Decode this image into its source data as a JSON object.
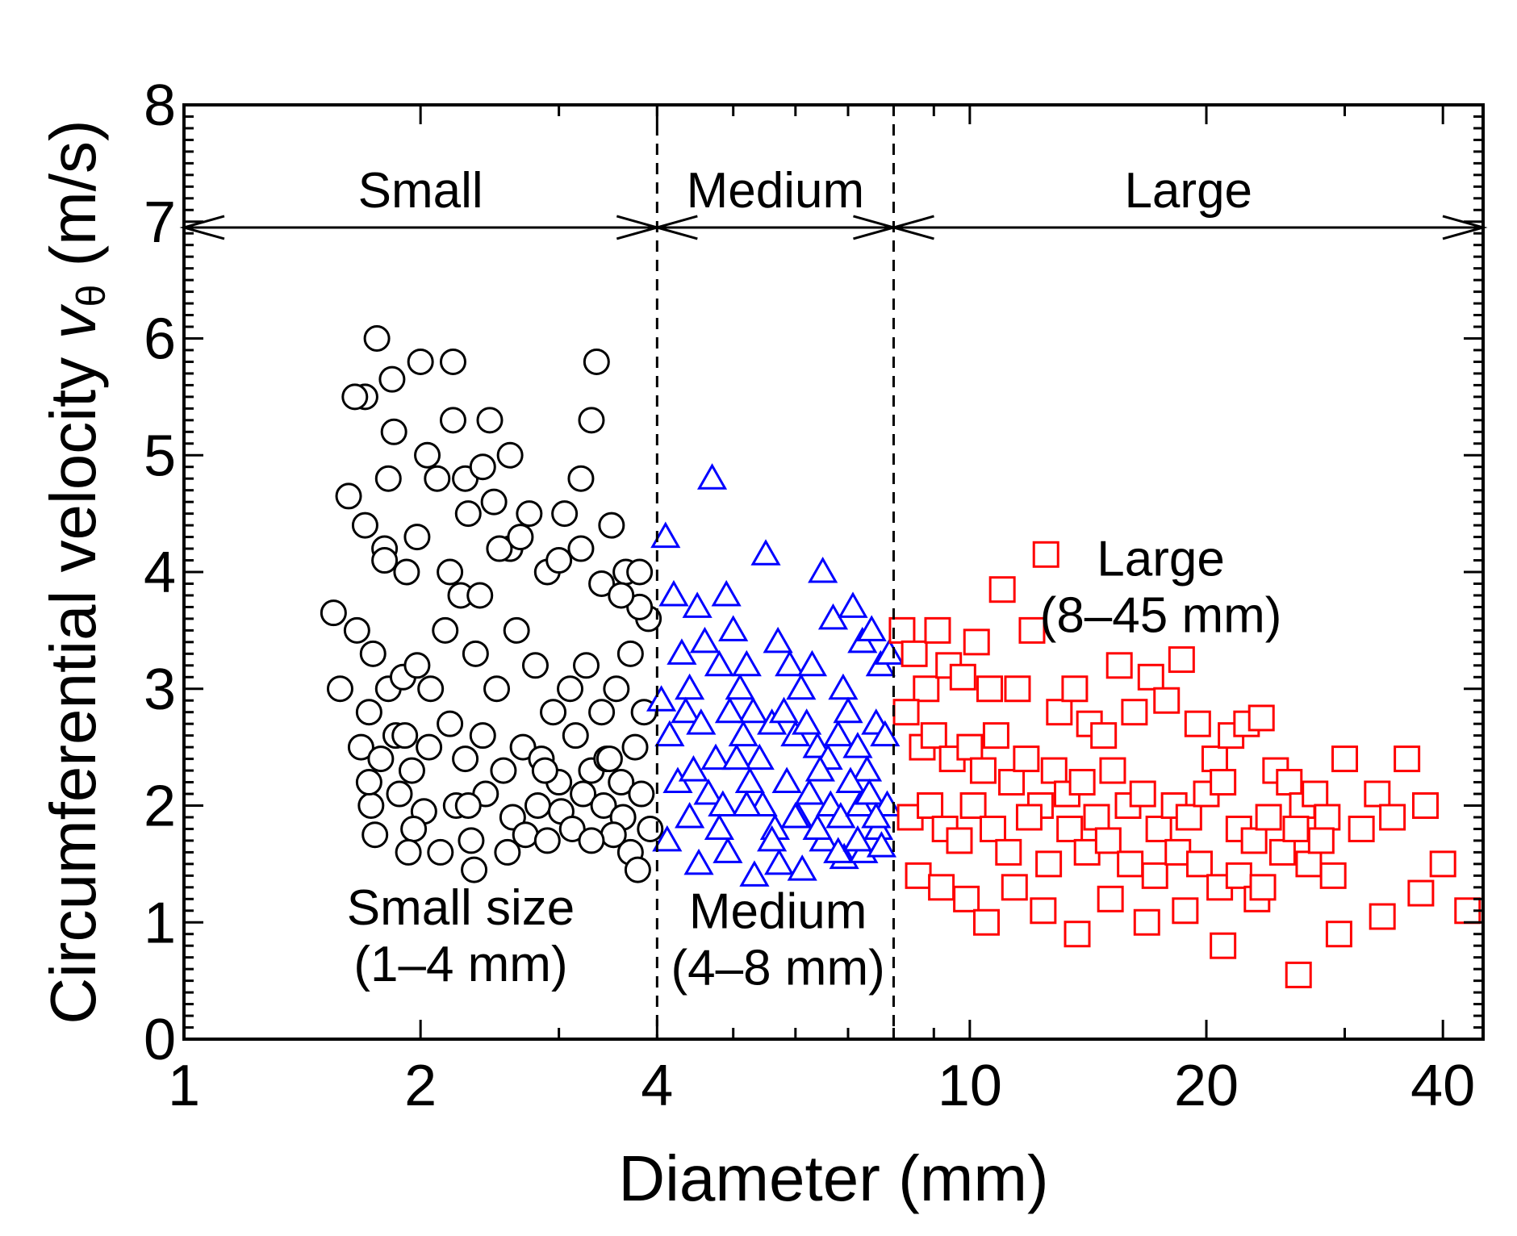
{
  "chart_data": {
    "type": "scatter",
    "title": "",
    "xlabel": "Diameter (mm)",
    "ylabel": "Circumferential velocity",
    "ylabel_symbol": "v",
    "ylabel_subscript": "θ",
    "ylabel_unit": "(m/s)",
    "xscale": "log",
    "xlim": [
      1,
      45
    ],
    "ylim": [
      0,
      8
    ],
    "xticks": [
      1,
      2,
      4,
      10,
      20,
      40
    ],
    "xtick_labels": [
      "1",
      "2",
      "4",
      "10",
      "20",
      "40"
    ],
    "yticks": [
      0,
      1,
      2,
      3,
      4,
      5,
      6,
      7,
      8
    ],
    "ytick_labels": [
      "0",
      "1",
      "2",
      "3",
      "4",
      "5",
      "6",
      "7",
      "8"
    ],
    "boundaries": [
      4,
      8
    ],
    "range_arrow_y": 6.95,
    "regions": [
      {
        "name": "Small",
        "from": 1,
        "to": 4
      },
      {
        "name": "Medium",
        "from": 4,
        "to": 8
      },
      {
        "name": "Large",
        "from": 8,
        "to": 45
      }
    ],
    "annotations": [
      {
        "line1": "Small size",
        "line2": "(1–4 mm)",
        "x": 2.25,
        "y": 0.98
      },
      {
        "line1": "Medium",
        "line2": "(4–8 mm)",
        "x": 5.7,
        "y": 0.95
      },
      {
        "line1": "Large",
        "line2": "(8–45 mm)",
        "x": 17.5,
        "y": 3.97
      }
    ],
    "series": [
      {
        "name": "Small size (1–4 mm)",
        "marker": "circle",
        "color": "#000000",
        "x": [
          1.55,
          1.62,
          1.7,
          1.76,
          1.8,
          1.84,
          1.92,
          2.0,
          2.1,
          2.2,
          2.3,
          2.45,
          2.6,
          2.75,
          2.9,
          3.05,
          3.2,
          3.35,
          3.5,
          3.65,
          3.8,
          3.9,
          1.58,
          1.66,
          1.74,
          1.82,
          1.9,
          1.98,
          2.06,
          2.15,
          2.25,
          2.35,
          2.5,
          2.65,
          2.8,
          2.95,
          3.1,
          3.25,
          3.4,
          3.55,
          3.7,
          3.85,
          1.68,
          1.72,
          1.78,
          1.86,
          1.95,
          2.05,
          2.18,
          2.28,
          2.4,
          2.55,
          2.7,
          2.85,
          3.0,
          3.15,
          3.3,
          3.45,
          3.6,
          3.75,
          1.73,
          1.88,
          2.02,
          2.22,
          2.42,
          2.62,
          2.82,
          3.02,
          3.22,
          3.42,
          3.62,
          3.82,
          1.75,
          1.96,
          2.32,
          2.72,
          3.12,
          3.52,
          3.92,
          1.93,
          2.12,
          2.34,
          2.58,
          2.9,
          3.3,
          3.7,
          1.7,
          1.8,
          1.98,
          2.18,
          2.38,
          2.52,
          1.82,
          2.04,
          2.28,
          2.48,
          2.68,
          3.0,
          3.4,
          3.8,
          2.2,
          2.6,
          3.2,
          3.6,
          1.85,
          2.4,
          3.3,
          1.65,
          1.72,
          1.91,
          2.3,
          2.88,
          3.48,
          3.78
        ],
        "y": [
          3.65,
          4.65,
          5.5,
          6.0,
          4.2,
          5.65,
          4.0,
          5.8,
          4.8,
          5.8,
          4.5,
          5.3,
          4.2,
          4.5,
          4.0,
          4.5,
          4.8,
          5.8,
          4.4,
          4.0,
          4.0,
          3.6,
          3.0,
          3.5,
          3.3,
          3.0,
          3.1,
          3.2,
          3.0,
          3.5,
          3.8,
          3.3,
          3.0,
          3.5,
          3.2,
          2.8,
          3.0,
          3.2,
          2.8,
          3.0,
          3.3,
          2.8,
          2.5,
          2.8,
          2.4,
          2.6,
          2.3,
          2.5,
          2.7,
          2.4,
          2.6,
          2.3,
          2.5,
          2.4,
          2.2,
          2.6,
          2.3,
          2.4,
          2.2,
          2.5,
          2.0,
          2.1,
          1.95,
          2.0,
          2.1,
          1.9,
          2.0,
          1.95,
          2.1,
          2.0,
          1.9,
          2.1,
          1.75,
          1.8,
          1.7,
          1.75,
          1.8,
          1.75,
          1.8,
          1.6,
          1.6,
          1.45,
          1.6,
          1.7,
          1.7,
          1.6,
          4.4,
          4.1,
          4.3,
          4.0,
          3.8,
          4.2,
          4.8,
          5.0,
          4.8,
          4.6,
          4.3,
          4.1,
          3.9,
          3.7,
          5.3,
          5.0,
          4.2,
          3.8,
          5.2,
          4.9,
          5.3,
          5.5,
          2.2,
          2.6,
          2.0,
          2.3,
          2.4,
          1.45
        ]
      },
      {
        "name": "Medium (4–8 mm)",
        "marker": "triangle",
        "color": "#0000ff",
        "x": [
          4.1,
          4.2,
          4.3,
          4.4,
          4.5,
          4.6,
          4.7,
          4.8,
          4.9,
          5.0,
          5.1,
          5.2,
          5.3,
          5.5,
          5.7,
          5.9,
          6.1,
          6.3,
          6.5,
          6.7,
          6.9,
          7.1,
          7.3,
          7.5,
          7.7,
          7.9,
          4.05,
          4.15,
          4.35,
          4.55,
          4.75,
          4.95,
          5.15,
          5.4,
          5.6,
          5.8,
          6.0,
          6.2,
          6.4,
          6.6,
          6.8,
          7.0,
          7.2,
          7.4,
          7.6,
          7.8,
          4.25,
          4.45,
          4.65,
          4.85,
          5.05,
          5.25,
          5.45,
          5.65,
          5.85,
          6.05,
          6.25,
          6.45,
          6.65,
          6.85,
          7.05,
          7.25,
          7.45,
          7.65,
          7.85,
          4.12,
          4.52,
          4.92,
          5.32,
          5.72,
          6.12,
          6.52,
          6.92,
          7.32,
          7.72,
          4.4,
          4.8,
          5.2,
          5.6,
          6.0,
          6.4,
          6.8,
          7.2,
          7.6
        ],
        "y": [
          4.3,
          3.8,
          3.3,
          3.0,
          3.7,
          3.4,
          4.8,
          3.2,
          3.8,
          3.5,
          3.0,
          3.2,
          2.8,
          4.15,
          3.4,
          3.2,
          3.0,
          3.2,
          4.0,
          3.6,
          3.0,
          3.7,
          3.4,
          3.5,
          3.2,
          3.3,
          2.9,
          2.6,
          2.8,
          2.7,
          2.4,
          2.8,
          2.6,
          2.4,
          2.7,
          2.8,
          2.6,
          2.7,
          2.5,
          2.4,
          2.6,
          2.8,
          2.5,
          2.3,
          2.7,
          2.6,
          2.2,
          2.3,
          2.1,
          2.0,
          2.4,
          2.2,
          2.0,
          1.8,
          2.2,
          1.9,
          2.1,
          2.3,
          2.0,
          1.9,
          2.2,
          2.0,
          2.1,
          1.8,
          2.0,
          1.7,
          1.5,
          1.6,
          1.4,
          1.5,
          1.45,
          1.7,
          1.55,
          1.6,
          1.65,
          1.9,
          1.8,
          2.0,
          1.7,
          1.9,
          1.8,
          1.6,
          1.7,
          1.9
        ]
      },
      {
        "name": "Large (8–45 mm)",
        "marker": "square",
        "color": "#ff0000",
        "x": [
          8.2,
          8.5,
          8.8,
          9.1,
          9.4,
          9.8,
          10.2,
          10.6,
          11.0,
          11.5,
          12.0,
          12.5,
          13.0,
          13.6,
          14.2,
          14.8,
          15.5,
          16.2,
          17.0,
          17.8,
          18.6,
          19.5,
          20.5,
          21.5,
          22.5,
          23.5,
          24.5,
          25.5,
          26.5,
          27.5,
          28.5,
          30.0,
          31.5,
          33.0,
          34.5,
          36.0,
          38.0,
          40.0,
          43.0,
          8.3,
          8.7,
          9.0,
          9.5,
          10.0,
          10.4,
          10.8,
          11.3,
          11.8,
          12.3,
          12.8,
          13.3,
          13.9,
          14.5,
          15.2,
          15.9,
          16.6,
          17.4,
          18.2,
          19.0,
          20.0,
          21.0,
          22.0,
          23.0,
          24.0,
          25.0,
          26.0,
          27.0,
          28.0,
          29.0,
          8.4,
          8.9,
          9.3,
          9.7,
          10.1,
          10.7,
          11.2,
          11.9,
          12.6,
          13.4,
          14.1,
          15.0,
          16.0,
          17.2,
          18.4,
          19.6,
          20.8,
          22.0,
          23.2,
          8.6,
          9.2,
          9.9,
          10.5,
          11.4,
          12.4,
          13.7,
          15.1,
          16.8,
          18.8,
          21.0,
          23.6,
          26.2,
          29.5,
          33.5,
          37.5
        ],
        "y": [
          3.5,
          3.3,
          3.0,
          3.5,
          3.2,
          3.1,
          3.4,
          3.0,
          3.85,
          3.0,
          3.5,
          4.15,
          2.8,
          3.0,
          2.7,
          2.6,
          3.2,
          2.8,
          3.1,
          2.9,
          3.25,
          2.7,
          2.4,
          2.6,
          2.7,
          2.75,
          2.3,
          2.2,
          2.0,
          2.1,
          1.9,
          2.4,
          1.8,
          2.1,
          1.9,
          2.4,
          2.0,
          1.5,
          1.1,
          2.8,
          2.5,
          2.6,
          2.4,
          2.5,
          2.3,
          2.6,
          2.2,
          2.4,
          2.0,
          2.3,
          2.1,
          2.2,
          1.9,
          2.3,
          2.0,
          2.1,
          1.8,
          2.0,
          1.9,
          2.1,
          2.2,
          1.8,
          1.7,
          1.9,
          1.6,
          1.8,
          1.5,
          1.7,
          1.4,
          1.9,
          2.0,
          1.8,
          1.7,
          2.0,
          1.8,
          1.6,
          1.9,
          1.5,
          1.8,
          1.6,
          1.7,
          1.5,
          1.4,
          1.6,
          1.5,
          1.3,
          1.4,
          1.2,
          1.4,
          1.3,
          1.2,
          1.0,
          1.3,
          1.1,
          0.9,
          1.2,
          1.0,
          1.1,
          0.8,
          1.3,
          0.55,
          0.9,
          1.05,
          1.25
        ]
      }
    ]
  }
}
